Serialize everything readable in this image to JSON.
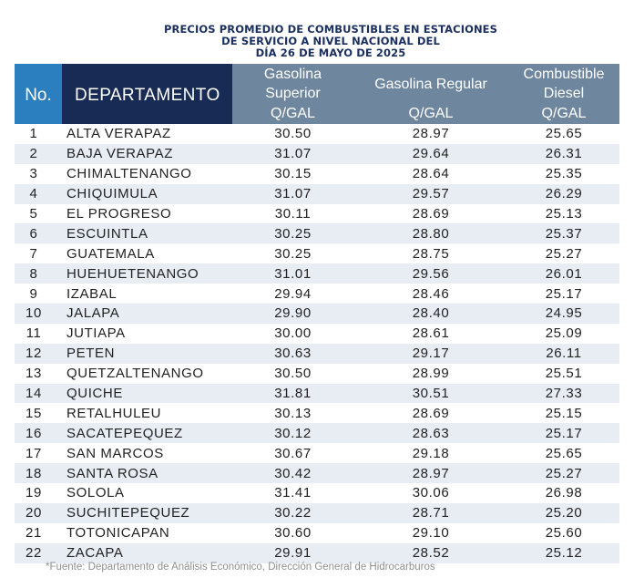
{
  "title": {
    "line1": "PRECIOS PROMEDIO DE COMBUSTIBLES EN ESTACIONES",
    "line2": "DE SERVICIO A NIVEL NACIONAL DEL",
    "line3": "DÍA 26 DE MAYO DE 2025"
  },
  "header": {
    "no": "No.",
    "departamento": "DEPARTAMENTO",
    "col1_line1": "Gasolina",
    "col1_line2": "Superior",
    "col1_unit": "Q/GAL",
    "col2_line1": "Gasolina Regular",
    "col2_unit": "Q/GAL",
    "col3_line1": "Combustible",
    "col3_line2": "Diesel",
    "col3_unit": "Q/GAL"
  },
  "rows": [
    {
      "no": "1",
      "dep": "ALTA VERAPAZ",
      "superior": "30.50",
      "regular": "28.97",
      "diesel": "25.65"
    },
    {
      "no": "2",
      "dep": "BAJA VERAPAZ",
      "superior": "31.07",
      "regular": "29.64",
      "diesel": "26.31"
    },
    {
      "no": "3",
      "dep": "CHIMALTENANGO",
      "superior": "30.15",
      "regular": "28.64",
      "diesel": "25.35"
    },
    {
      "no": "4",
      "dep": "CHIQUIMULA",
      "superior": "31.07",
      "regular": "29.57",
      "diesel": "26.29"
    },
    {
      "no": "5",
      "dep": "EL PROGRESO",
      "superior": "30.11",
      "regular": "28.69",
      "diesel": "25.13"
    },
    {
      "no": "6",
      "dep": "ESCUINTLA",
      "superior": "30.25",
      "regular": "28.80",
      "diesel": "25.37"
    },
    {
      "no": "7",
      "dep": "GUATEMALA",
      "superior": "30.25",
      "regular": "28.75",
      "diesel": "25.27"
    },
    {
      "no": "8",
      "dep": "HUEHUETENANGO",
      "superior": "31.01",
      "regular": "29.56",
      "diesel": "26.01"
    },
    {
      "no": "9",
      "dep": "IZABAL",
      "superior": "29.94",
      "regular": "28.46",
      "diesel": "25.17"
    },
    {
      "no": "10",
      "dep": "JALAPA",
      "superior": "29.90",
      "regular": "28.40",
      "diesel": "24.95"
    },
    {
      "no": "11",
      "dep": "JUTIAPA",
      "superior": "30.00",
      "regular": "28.61",
      "diesel": "25.09"
    },
    {
      "no": "12",
      "dep": "PETEN",
      "superior": "30.63",
      "regular": "29.17",
      "diesel": "26.11"
    },
    {
      "no": "13",
      "dep": "QUETZALTENANGO",
      "superior": "30.50",
      "regular": "28.99",
      "diesel": "25.51"
    },
    {
      "no": "14",
      "dep": "QUICHE",
      "superior": "31.81",
      "regular": "30.51",
      "diesel": "27.33"
    },
    {
      "no": "15",
      "dep": "RETALHULEU",
      "superior": "30.13",
      "regular": "28.69",
      "diesel": "25.15"
    },
    {
      "no": "16",
      "dep": "SACATEPEQUEZ",
      "superior": "30.12",
      "regular": "28.63",
      "diesel": "25.17"
    },
    {
      "no": "17",
      "dep": "SAN MARCOS",
      "superior": "30.67",
      "regular": "29.18",
      "diesel": "25.65"
    },
    {
      "no": "18",
      "dep": "SANTA ROSA",
      "superior": "30.42",
      "regular": "28.97",
      "diesel": "25.27"
    },
    {
      "no": "19",
      "dep": "SOLOLA",
      "superior": "31.41",
      "regular": "30.06",
      "diesel": "26.98"
    },
    {
      "no": "20",
      "dep": "SUCHITEPEQUEZ",
      "superior": "30.22",
      "regular": "28.71",
      "diesel": "25.20"
    },
    {
      "no": "21",
      "dep": "TOTONICAPAN",
      "superior": "30.60",
      "regular": "29.10",
      "diesel": "25.60"
    },
    {
      "no": "22",
      "dep": "ZACAPA",
      "superior": "29.91",
      "regular": "28.52",
      "diesel": "25.12"
    }
  ],
  "footer": "*Fuente: Departamento de Análisis Económico, Dirección General de Hidrocarburos",
  "colors": {
    "title": "#1a2f5e",
    "no_header_bg": "#2c7fbf",
    "dep_header_bg": "#172b55",
    "price_header_bg": "#6f879e",
    "stripe": "#e8edf4",
    "footer_text": "#8f8f8f"
  }
}
